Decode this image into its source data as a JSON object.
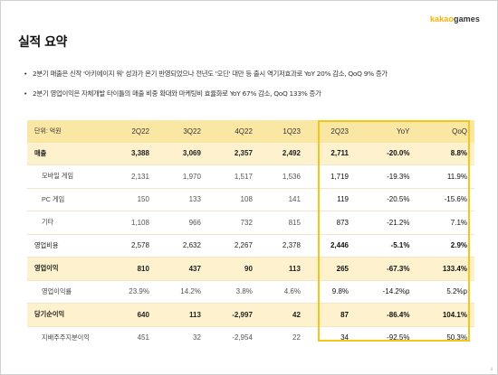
{
  "brand": {
    "part1": "kakao",
    "part2": "games"
  },
  "title": "실적 요약",
  "bullets": [
    "2분기 매출은 신작 '아키에이지 워' 성과가 온기 반영되었으나 전년도 '오딘' 대만 등 출시 역기저효과로 YoY 20% 감소, QoQ 9% 증가",
    "2분기 영업이익은 자체개발 타이틀의 매출 비중 확대와 마케팅비 효율화로 YoY 67% 감소, QoQ 133% 증가"
  ],
  "table": {
    "unit": "단위: 억원",
    "headers": [
      "2Q22",
      "3Q22",
      "4Q22",
      "1Q23",
      "2Q23",
      "YoY",
      "QoQ"
    ],
    "rows": [
      {
        "label": "매출",
        "type": "sec",
        "values": [
          "3,388",
          "3,069",
          "2,357",
          "2,492",
          "2,711",
          "-20.0%",
          "8.8%"
        ]
      },
      {
        "label": "모바일 게임",
        "type": "sub",
        "values": [
          "2,131",
          "1,970",
          "1,517",
          "1,536",
          "1,719",
          "-19.3%",
          "11.9%"
        ]
      },
      {
        "label": "PC 게임",
        "type": "sub",
        "values": [
          "150",
          "133",
          "108",
          "141",
          "119",
          "-20.5%",
          "-15.6%"
        ]
      },
      {
        "label": "기타",
        "type": "sub",
        "values": [
          "1,108",
          "966",
          "732",
          "815",
          "873",
          "-21.2%",
          "7.1%"
        ]
      },
      {
        "label": "영업비용",
        "type": "plain",
        "values": [
          "2,578",
          "2,632",
          "2,267",
          "2,378",
          "2,446",
          "-5.1%",
          "2.9%"
        ]
      },
      {
        "label": "영업이익",
        "type": "sec",
        "values": [
          "810",
          "437",
          "90",
          "113",
          "265",
          "-67.3%",
          "133.4%"
        ]
      },
      {
        "label": "영업이익률",
        "type": "sub",
        "values": [
          "23.9%",
          "14.2%",
          "3.8%",
          "4.6%",
          "9.8%",
          "-14.2%p",
          "5.2%p"
        ]
      },
      {
        "label": "당기순이익",
        "type": "sec",
        "values": [
          "640",
          "113",
          "-2,997",
          "42",
          "87",
          "-86.4%",
          "104.1%"
        ]
      },
      {
        "label": "지배주주지분이익",
        "type": "sub",
        "values": [
          "451",
          "32",
          "-2,954",
          "22",
          "34",
          "-92.5%",
          "50.3%"
        ]
      }
    ]
  },
  "page_number": "3",
  "colors": {
    "accent": "#f5c518",
    "header_bg": "#fbe7a4",
    "section_bg": "#fdf2cd",
    "logo": "#f5b400"
  }
}
